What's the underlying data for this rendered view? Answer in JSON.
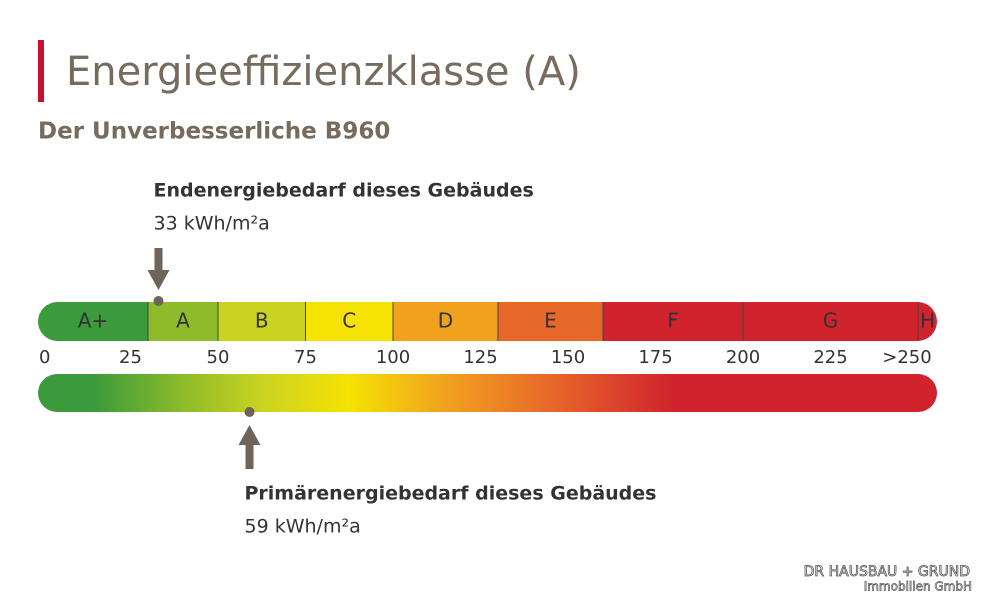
{
  "chart_data": {
    "type": "energy-scale",
    "title": "Energieeffizienzklasse (A)",
    "subtitle": "Der Unverbesserliche B960",
    "xlim": [
      0,
      250
    ],
    "xticks": [
      0,
      25,
      50,
      75,
      100,
      125,
      150,
      175,
      200,
      225,
      {
        "value": 250,
        "label": ">250"
      }
    ],
    "classes": [
      "A+",
      "A",
      "B",
      "C",
      "D",
      "E",
      "F",
      "G",
      "H"
    ],
    "bounds": [
      30,
      50,
      75,
      100,
      130,
      160,
      200,
      250
    ],
    "class_colors": [
      "#3a9a3c",
      "#8dbb2a",
      "#c9d320",
      "#f6e203",
      "#f0a21f",
      "#e8682a",
      "#d1232d",
      "#d1232d",
      "#d1232d"
    ],
    "markers": [
      {
        "label": "Endenergiebedarf dieses Gebäudes",
        "value": 33,
        "value_label": "33 kWh/m²a"
      },
      {
        "label": "Primärenergiebedarf dieses Gebäudes",
        "value": 59,
        "value_label": "59 kWh/m²a"
      }
    ]
  },
  "footer": {
    "line1": "DR HAUSBAU + GRUND",
    "line2": "Immobilien GmbH"
  }
}
